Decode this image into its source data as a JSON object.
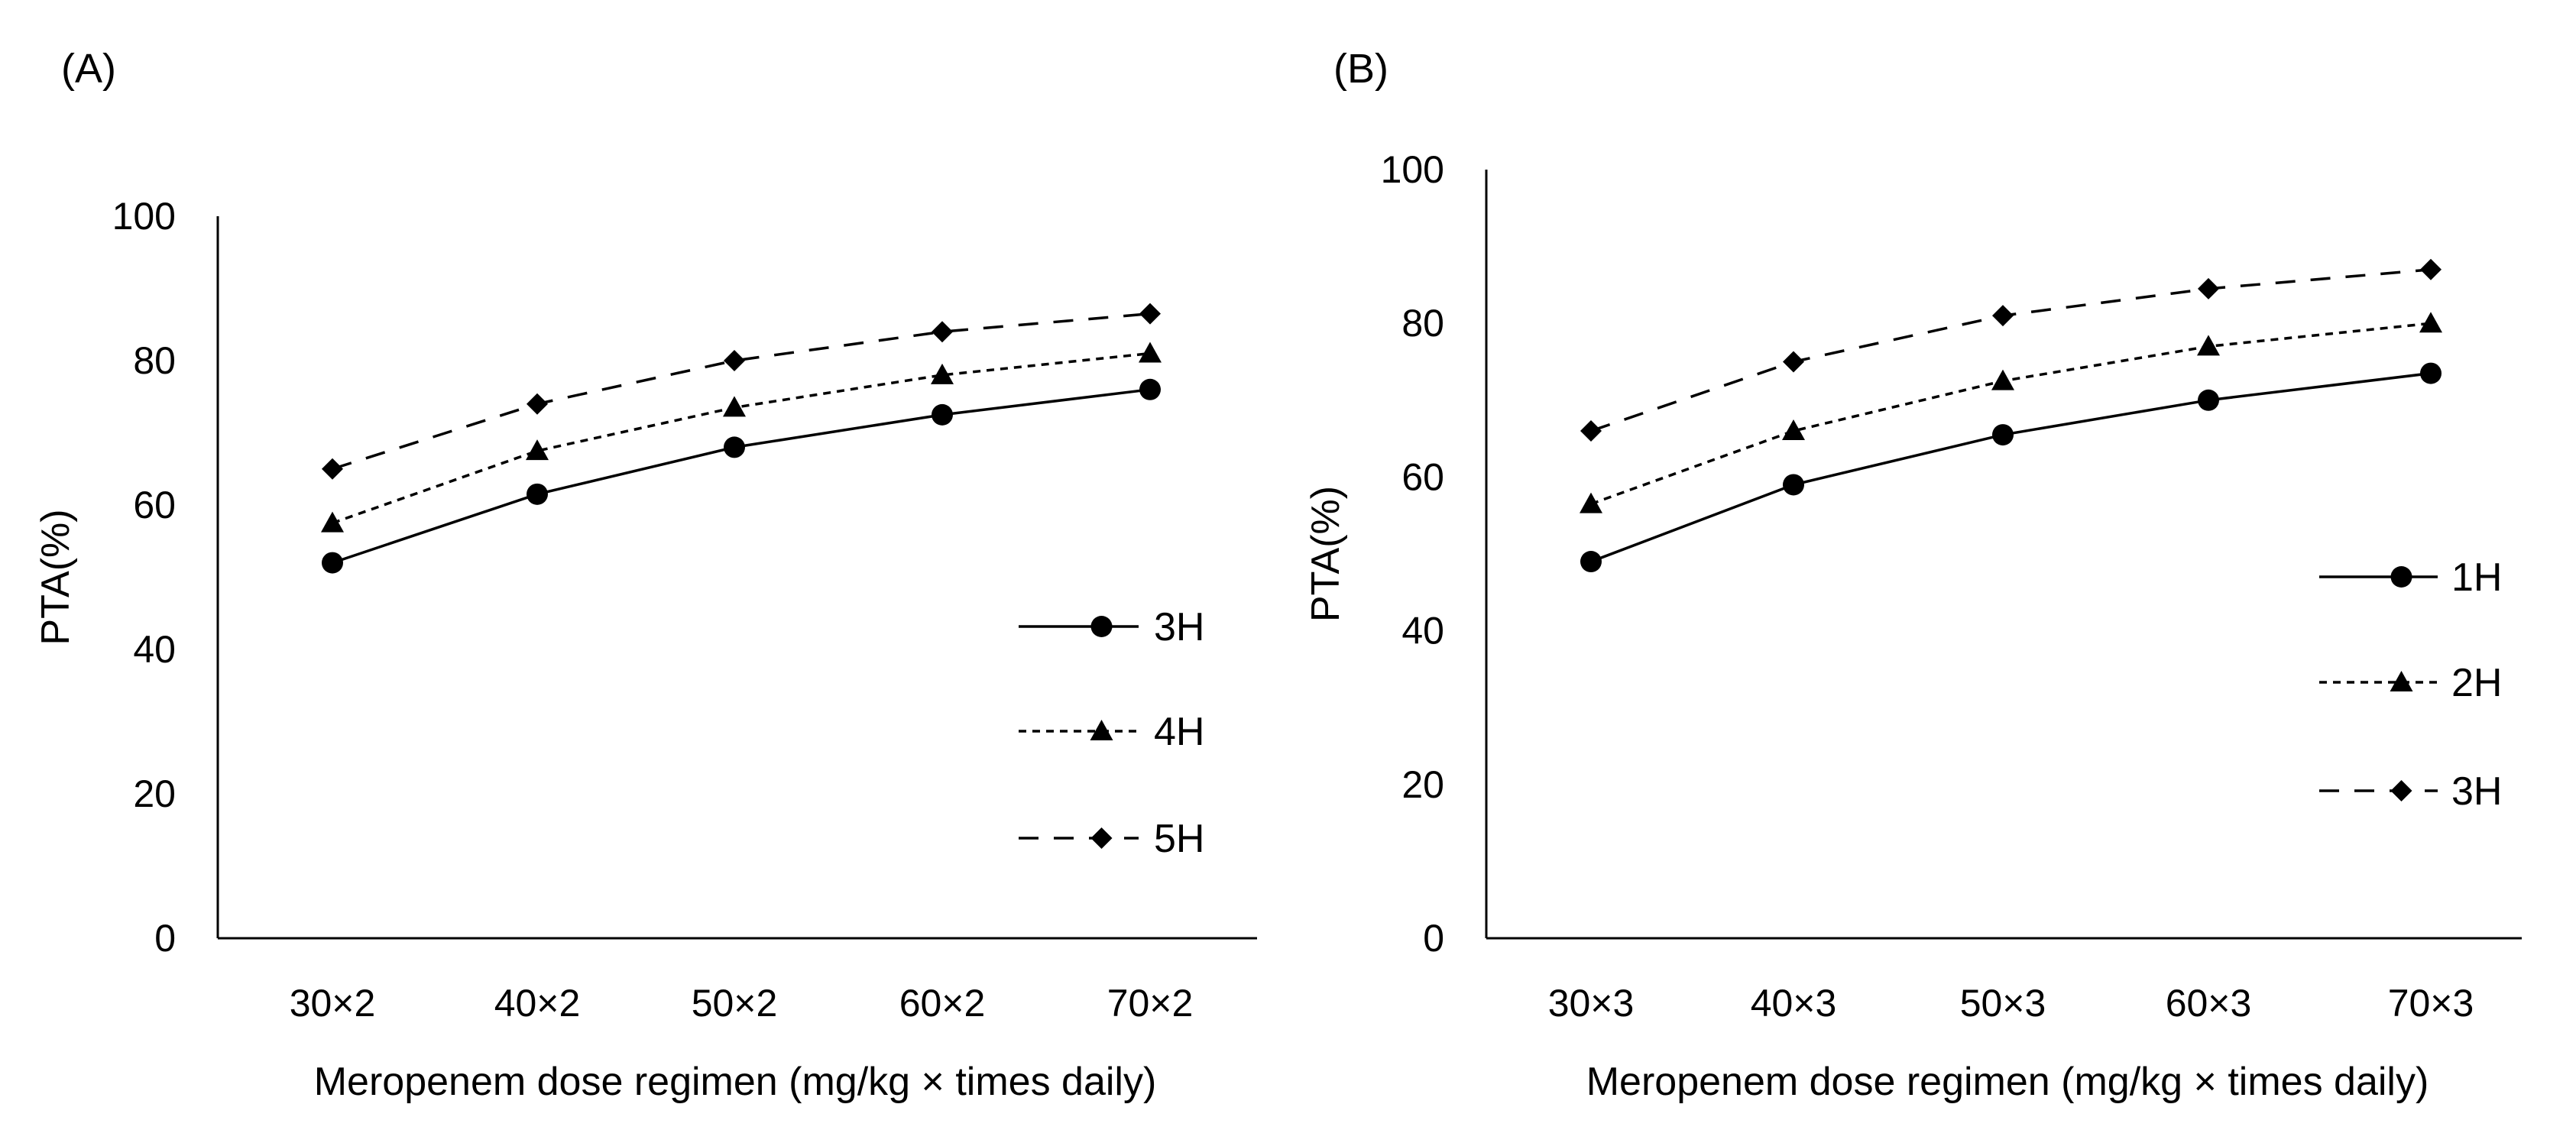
{
  "chart_data": [
    {
      "panel": "(A)",
      "type": "line",
      "categories": [
        "30×2",
        "40×2",
        "50×2",
        "60×2",
        "70×2"
      ],
      "yticks": [
        "0",
        "20",
        "40",
        "60",
        "80",
        "100"
      ],
      "ylim": [
        0,
        100
      ],
      "xlabel": "Meropenem dose regimen (mg/kg × times daily)",
      "ylabel": "PTA(%)",
      "grid": false,
      "legend_position": "right",
      "series": [
        {
          "name": "3H",
          "marker": "circle",
          "dash": "solid",
          "values": [
            52,
            61.5,
            68,
            72.5,
            76
          ]
        },
        {
          "name": "4H",
          "marker": "triangle",
          "dash": "short-dash",
          "values": [
            57.5,
            67.5,
            73.5,
            78,
            81
          ]
        },
        {
          "name": "5H",
          "marker": "diamond",
          "dash": "long-dash",
          "values": [
            65,
            74,
            80,
            84,
            86.5
          ]
        }
      ]
    },
    {
      "panel": "(B)",
      "type": "line",
      "categories": [
        "30×3",
        "40×3",
        "50×3",
        "60×3",
        "70×3"
      ],
      "yticks": [
        "0",
        "20",
        "40",
        "60",
        "80",
        "100"
      ],
      "ylim": [
        0,
        100
      ],
      "xlabel": "Meropenem dose regimen (mg/kg × times daily)",
      "ylabel": "PTA(%)",
      "grid": false,
      "legend_position": "right",
      "series": [
        {
          "name": "1H",
          "marker": "circle",
          "dash": "solid",
          "values": [
            49,
            59,
            65.5,
            70,
            73.5
          ]
        },
        {
          "name": "2H",
          "marker": "triangle",
          "dash": "short-dash",
          "values": [
            56.5,
            66,
            72.5,
            77,
            80
          ]
        },
        {
          "name": "3H",
          "marker": "diamond",
          "dash": "long-dash",
          "values": [
            66,
            75,
            81,
            84.5,
            87
          ]
        }
      ]
    }
  ]
}
